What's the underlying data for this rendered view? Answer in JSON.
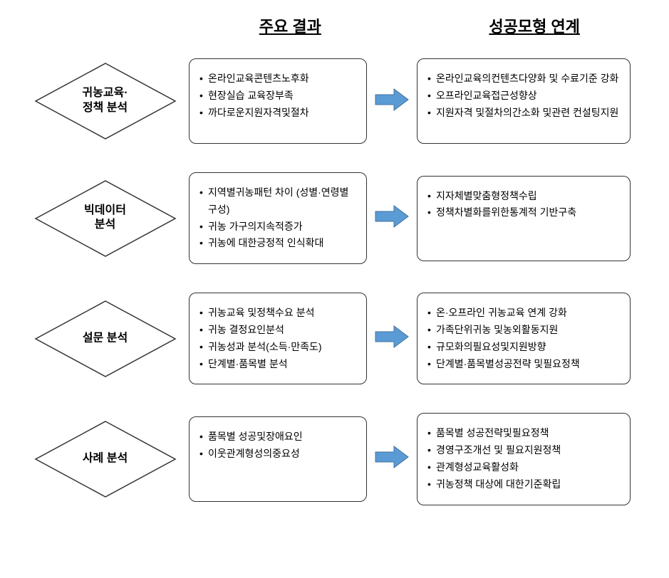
{
  "headers": {
    "mid": "주요 결과",
    "right": "성공모형 연계"
  },
  "rows": [
    {
      "label": "귀농교육·\n정책 분석",
      "mid": [
        "온라인교육콘텐츠노후화",
        "현장실습 교육장부족",
        "까다로운지원자격및절차"
      ],
      "right": [
        "온라인교육의컨텐츠다양화 및 수료기준 강화",
        "오프라인교육접근성향상",
        "지원자격 및절차의간소화 및관련 컨설팅지원"
      ]
    },
    {
      "label": "빅데이터\n분석",
      "mid": [
        "지역별귀농패턴 차이 (성별·연령별 구성)",
        "귀농 가구의지속적증가",
        "귀농에 대한긍정적 인식확대"
      ],
      "right": [
        "지자체별맞춤형정책수립",
        "정책차별화를위한통계적 기반구축"
      ]
    },
    {
      "label": "설문 분석",
      "mid": [
        "귀농교육 및정책수요 분석",
        "귀농 결정요인분석",
        "귀농성과 분석(소득·만족도)",
        "단계별·품목별 분석"
      ],
      "right": [
        "온·오프라인 귀농교육 연계 강화",
        "가족단위귀농 및농외활동지원",
        "규모화의필요성및지원방향",
        "단계별·품목별성공전략 및필요정책"
      ]
    },
    {
      "label": "사례 분석",
      "mid": [
        "품목별 성공및장애요인",
        "이웃관계형성의중요성"
      ],
      "right": [
        "품목별 성공전략및필요정책",
        "경영구조개선 및 필요지원정책",
        "관계형성교육활성화",
        "귀농정책 대상에 대한기준확립"
      ]
    }
  ],
  "style": {
    "diamond_stroke": "#333333",
    "diamond_fill": "#ffffff",
    "arrow_fill": "#5b9bd5",
    "arrow_stroke": "#41719c",
    "box_border": "#333333",
    "background": "#ffffff"
  }
}
